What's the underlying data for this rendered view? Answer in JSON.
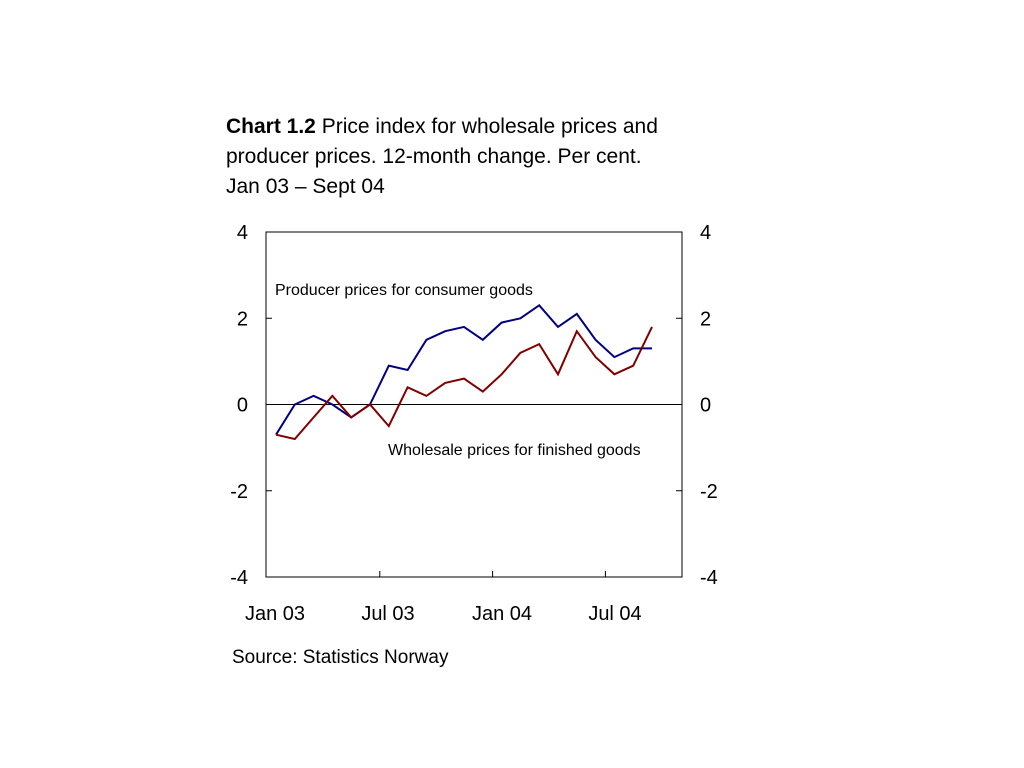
{
  "title": {
    "chart_number": "Chart 1.2",
    "line1_rest": "Price index for wholesale prices and",
    "line2": "producer prices. 12-month change. Per cent.",
    "line3": "Jan 03 – Sept 04"
  },
  "source": "Source: Statistics Norway",
  "colors": {
    "producer": "#000080",
    "wholesale": "#800000",
    "axis": "#000000"
  },
  "chart_data": {
    "type": "line",
    "title": "Chart 1.2 Price index for wholesale prices and producer prices. 12-month change. Per cent. Jan 03 – Sept 04",
    "xlabel": "",
    "ylabel": "",
    "ylim": [
      -4,
      4
    ],
    "yticks": [
      4,
      2,
      0,
      -2,
      -4
    ],
    "ytick_labels": [
      "4",
      "2",
      "0",
      "-2",
      "-4"
    ],
    "grid": false,
    "zero_line": true,
    "dual_y_axis_labels": true,
    "x": [
      "Jan 03",
      "Feb 03",
      "Mar 03",
      "Apr 03",
      "May 03",
      "Jun 03",
      "Jul 03",
      "Aug 03",
      "Sep 03",
      "Oct 03",
      "Nov 03",
      "Dec 03",
      "Jan 04",
      "Feb 04",
      "Mar 04",
      "Apr 04",
      "May 04",
      "Jun 04",
      "Jul 04",
      "Aug 04",
      "Sep 04"
    ],
    "xtick_labels": [
      {
        "label": "Jan 03",
        "index": 0
      },
      {
        "label": "Jul 03",
        "index": 6
      },
      {
        "label": "Jan 04",
        "index": 12
      },
      {
        "label": "Jul 04",
        "index": 18
      }
    ],
    "series": [
      {
        "name": "Producer prices for consumer goods",
        "color": "#000080",
        "values": [
          -0.7,
          0.0,
          0.2,
          0.0,
          -0.3,
          0.0,
          0.9,
          0.8,
          1.5,
          1.7,
          1.8,
          1.5,
          1.9,
          2.0,
          2.3,
          1.8,
          2.1,
          1.5,
          1.1,
          1.3,
          1.3
        ]
      },
      {
        "name": "Wholesale prices for finished goods",
        "color": "#800000",
        "values": [
          -0.7,
          -0.8,
          -0.3,
          0.2,
          -0.3,
          0.0,
          -0.5,
          0.4,
          0.2,
          0.5,
          0.6,
          0.3,
          0.7,
          1.2,
          1.4,
          0.7,
          1.7,
          1.1,
          0.7,
          0.9,
          1.8
        ]
      }
    ],
    "annotations": [
      {
        "text": "Producer prices for consumer goods",
        "series": 0
      },
      {
        "text": "Wholesale prices for finished goods",
        "series": 1
      }
    ]
  }
}
